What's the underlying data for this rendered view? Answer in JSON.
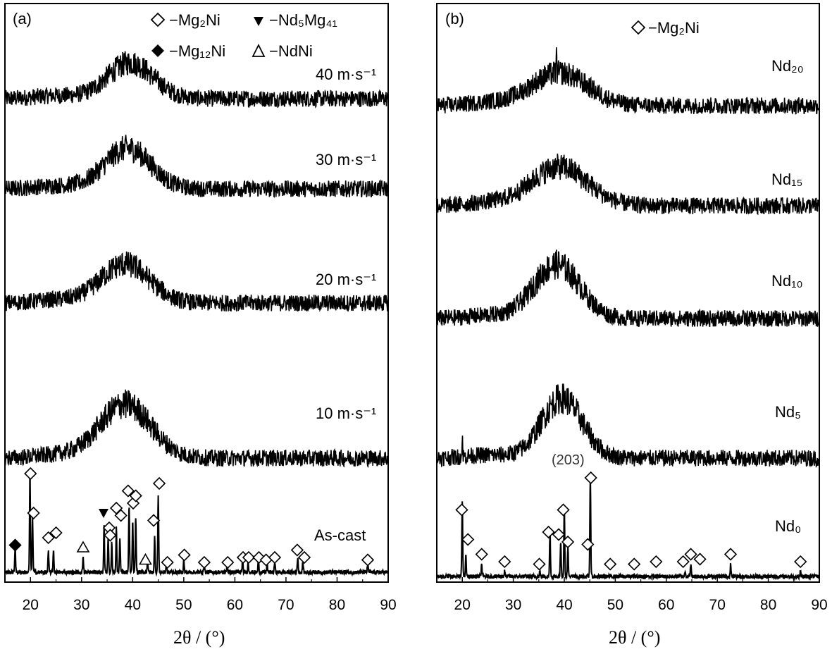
{
  "chart_data": [
    {
      "panel": "(a)",
      "type": "line",
      "xlabel": "2θ / (°)",
      "xlim": [
        15,
        90
      ],
      "xticks": [
        20,
        30,
        40,
        50,
        60,
        70,
        80,
        90
      ],
      "legend": [
        {
          "marker": "open-diamond",
          "text": "−Mg₂Ni"
        },
        {
          "marker": "filled-down-triangle",
          "text": "−Nd₅Mg₄₁"
        },
        {
          "marker": "filled-diamond",
          "text": "−Mg₁₂Ni"
        },
        {
          "marker": "open-triangle",
          "text": "−NdNi"
        }
      ],
      "series": [
        {
          "name": "40 m·s⁻¹",
          "kind": "amorphous",
          "hump_center": 39.5,
          "hump_width": 4.5,
          "hump_height": 0.6
        },
        {
          "name": "30 m·s⁻¹",
          "kind": "amorphous",
          "hump_center": 39.0,
          "hump_width": 4.5,
          "hump_height": 0.68
        },
        {
          "name": "20 m·s⁻¹",
          "kind": "amorphous",
          "hump_center": 38.5,
          "hump_width": 4.8,
          "hump_height": 0.65
        },
        {
          "name": "10 m·s⁻¹",
          "kind": "amorphous",
          "hump_center": 38.5,
          "hump_width": 5.0,
          "hump_height": 0.9
        },
        {
          "name": "As-cast",
          "kind": "crystalline",
          "peaks": [
            {
              "x": 17.0,
              "h": 0.25
            },
            {
              "x": 19.9,
              "h": 1.0
            },
            {
              "x": 20.4,
              "h": 0.55
            },
            {
              "x": 23.5,
              "h": 0.2
            },
            {
              "x": 24.5,
              "h": 0.22
            },
            {
              "x": 30.3,
              "h": 0.15
            },
            {
              "x": 34.4,
              "h": 0.45
            },
            {
              "x": 35.2,
              "h": 0.35
            },
            {
              "x": 35.9,
              "h": 0.28
            },
            {
              "x": 36.8,
              "h": 0.45
            },
            {
              "x": 37.5,
              "h": 0.35
            },
            {
              "x": 39.3,
              "h": 0.65
            },
            {
              "x": 40.0,
              "h": 0.5
            },
            {
              "x": 40.6,
              "h": 0.55
            },
            {
              "x": 42.9,
              "h": 0.12
            },
            {
              "x": 44.3,
              "h": 0.35
            },
            {
              "x": 45.0,
              "h": 0.75
            },
            {
              "x": 46.6,
              "h": 0.08
            },
            {
              "x": 50.0,
              "h": 0.12
            },
            {
              "x": 54.0,
              "h": 0.08
            },
            {
              "x": 58.5,
              "h": 0.08
            },
            {
              "x": 61.5,
              "h": 0.12
            },
            {
              "x": 62.6,
              "h": 0.1
            },
            {
              "x": 64.6,
              "h": 0.12
            },
            {
              "x": 66.3,
              "h": 0.1
            },
            {
              "x": 67.8,
              "h": 0.1
            },
            {
              "x": 72.3,
              "h": 0.15
            },
            {
              "x": 73.3,
              "h": 0.1
            },
            {
              "x": 86.0,
              "h": 0.08
            }
          ]
        }
      ],
      "markers": [
        {
          "x": 17.0,
          "y": 0.55,
          "type": "filled-diamond"
        },
        {
          "x": 20.0,
          "y": 2.0,
          "type": "open-diamond"
        },
        {
          "x": 20.6,
          "y": 1.2,
          "type": "open-diamond"
        },
        {
          "x": 23.5,
          "y": 0.7,
          "type": "open-diamond"
        },
        {
          "x": 25.0,
          "y": 0.8,
          "type": "open-diamond"
        },
        {
          "x": 30.3,
          "y": 0.5,
          "type": "open-triangle"
        },
        {
          "x": 34.3,
          "y": 1.2,
          "type": "filled-down-triangle"
        },
        {
          "x": 35.4,
          "y": 0.9,
          "type": "open-diamond"
        },
        {
          "x": 35.6,
          "y": 0.75,
          "type": "open-diamond"
        },
        {
          "x": 36.8,
          "y": 1.3,
          "type": "open-diamond"
        },
        {
          "x": 37.7,
          "y": 1.15,
          "type": "open-diamond"
        },
        {
          "x": 39.1,
          "y": 1.65,
          "type": "open-diamond"
        },
        {
          "x": 40.1,
          "y": 1.4,
          "type": "open-diamond"
        },
        {
          "x": 40.6,
          "y": 1.55,
          "type": "open-diamond"
        },
        {
          "x": 42.5,
          "y": 0.25,
          "type": "open-triangle"
        },
        {
          "x": 44.1,
          "y": 1.05,
          "type": "open-diamond"
        },
        {
          "x": 45.2,
          "y": 1.8,
          "type": "open-diamond"
        },
        {
          "x": 46.8,
          "y": 0.2,
          "type": "open-diamond"
        },
        {
          "x": 50.1,
          "y": 0.35,
          "type": "open-diamond"
        },
        {
          "x": 54.0,
          "y": 0.2,
          "type": "open-diamond"
        },
        {
          "x": 58.6,
          "y": 0.2,
          "type": "open-diamond"
        },
        {
          "x": 61.6,
          "y": 0.3,
          "type": "open-diamond"
        },
        {
          "x": 62.7,
          "y": 0.3,
          "type": "open-diamond"
        },
        {
          "x": 64.7,
          "y": 0.3,
          "type": "open-diamond"
        },
        {
          "x": 66.1,
          "y": 0.25,
          "type": "open-diamond"
        },
        {
          "x": 67.8,
          "y": 0.3,
          "type": "open-diamond"
        },
        {
          "x": 72.2,
          "y": 0.45,
          "type": "open-diamond"
        },
        {
          "x": 73.6,
          "y": 0.3,
          "type": "open-diamond"
        },
        {
          "x": 86.0,
          "y": 0.25,
          "type": "open-diamond"
        }
      ]
    },
    {
      "panel": "(b)",
      "type": "line",
      "xlabel": "2θ / (°)",
      "xlim": [
        15,
        90
      ],
      "xticks": [
        20,
        30,
        40,
        50,
        60,
        70,
        80,
        90
      ],
      "legend": [
        {
          "marker": "open-diamond",
          "text": "−Mg₂Ni"
        }
      ],
      "series": [
        {
          "name": "Nd₂₀",
          "kind": "amorphous",
          "hump_center": 39.0,
          "hump_width": 5.5,
          "hump_height": 0.55,
          "spike": 38.5
        },
        {
          "name": "Nd₁₅",
          "kind": "amorphous",
          "hump_center": 39.0,
          "hump_width": 5.5,
          "hump_height": 0.65
        },
        {
          "name": "Nd₁₀",
          "kind": "amorphous",
          "hump_center": 38.5,
          "hump_width": 4.5,
          "hump_height": 0.9
        },
        {
          "name": "Nd₅",
          "kind": "amorphous",
          "hump_center": 39.5,
          "hump_width": 4.0,
          "hump_height": 1.0,
          "spike": 20.0
        },
        {
          "name": "Nd₀",
          "kind": "crystalline",
          "peaks": [
            {
              "x": 20.0,
              "h": 0.75
            },
            {
              "x": 20.7,
              "h": 0.2
            },
            {
              "x": 23.8,
              "h": 0.12
            },
            {
              "x": 28.3,
              "h": 0.05
            },
            {
              "x": 35.2,
              "h": 0.05
            },
            {
              "x": 37.2,
              "h": 0.45
            },
            {
              "x": 39.3,
              "h": 0.35
            },
            {
              "x": 40.0,
              "h": 0.7
            },
            {
              "x": 40.7,
              "h": 0.3
            },
            {
              "x": 45.1,
              "h": 1.0
            },
            {
              "x": 63.7,
              "h": 0.06
            },
            {
              "x": 64.8,
              "h": 0.12
            },
            {
              "x": 72.6,
              "h": 0.12
            },
            {
              "x": 86.3,
              "h": 0.05
            }
          ]
        }
      ],
      "markers": [
        {
          "x": 19.9,
          "y": 1.35,
          "type": "open-diamond"
        },
        {
          "x": 21.1,
          "y": 0.75,
          "type": "open-diamond"
        },
        {
          "x": 23.8,
          "y": 0.45,
          "type": "open-diamond"
        },
        {
          "x": 28.3,
          "y": 0.3,
          "type": "open-diamond"
        },
        {
          "x": 35.1,
          "y": 0.25,
          "type": "open-diamond"
        },
        {
          "x": 36.9,
          "y": 0.9,
          "type": "open-diamond"
        },
        {
          "x": 38.9,
          "y": 0.85,
          "type": "open-diamond"
        },
        {
          "x": 39.8,
          "y": 1.35,
          "type": "open-diamond"
        },
        {
          "x": 40.7,
          "y": 0.7,
          "type": "open-diamond"
        },
        {
          "x": 44.6,
          "y": 0.65,
          "type": "open-diamond"
        },
        {
          "x": 45.2,
          "y": 2.0,
          "type": "open-diamond"
        },
        {
          "x": 49.0,
          "y": 0.25,
          "type": "open-diamond"
        },
        {
          "x": 53.7,
          "y": 0.25,
          "type": "open-diamond"
        },
        {
          "x": 58.0,
          "y": 0.3,
          "type": "open-diamond"
        },
        {
          "x": 63.3,
          "y": 0.3,
          "type": "open-diamond"
        },
        {
          "x": 64.8,
          "y": 0.45,
          "type": "open-diamond"
        },
        {
          "x": 66.6,
          "y": 0.35,
          "type": "open-diamond"
        },
        {
          "x": 72.6,
          "y": 0.45,
          "type": "open-diamond"
        },
        {
          "x": 86.3,
          "y": 0.3,
          "type": "open-diamond"
        }
      ],
      "annotations": [
        {
          "text": "(203)",
          "x": 42.2
        }
      ]
    }
  ]
}
